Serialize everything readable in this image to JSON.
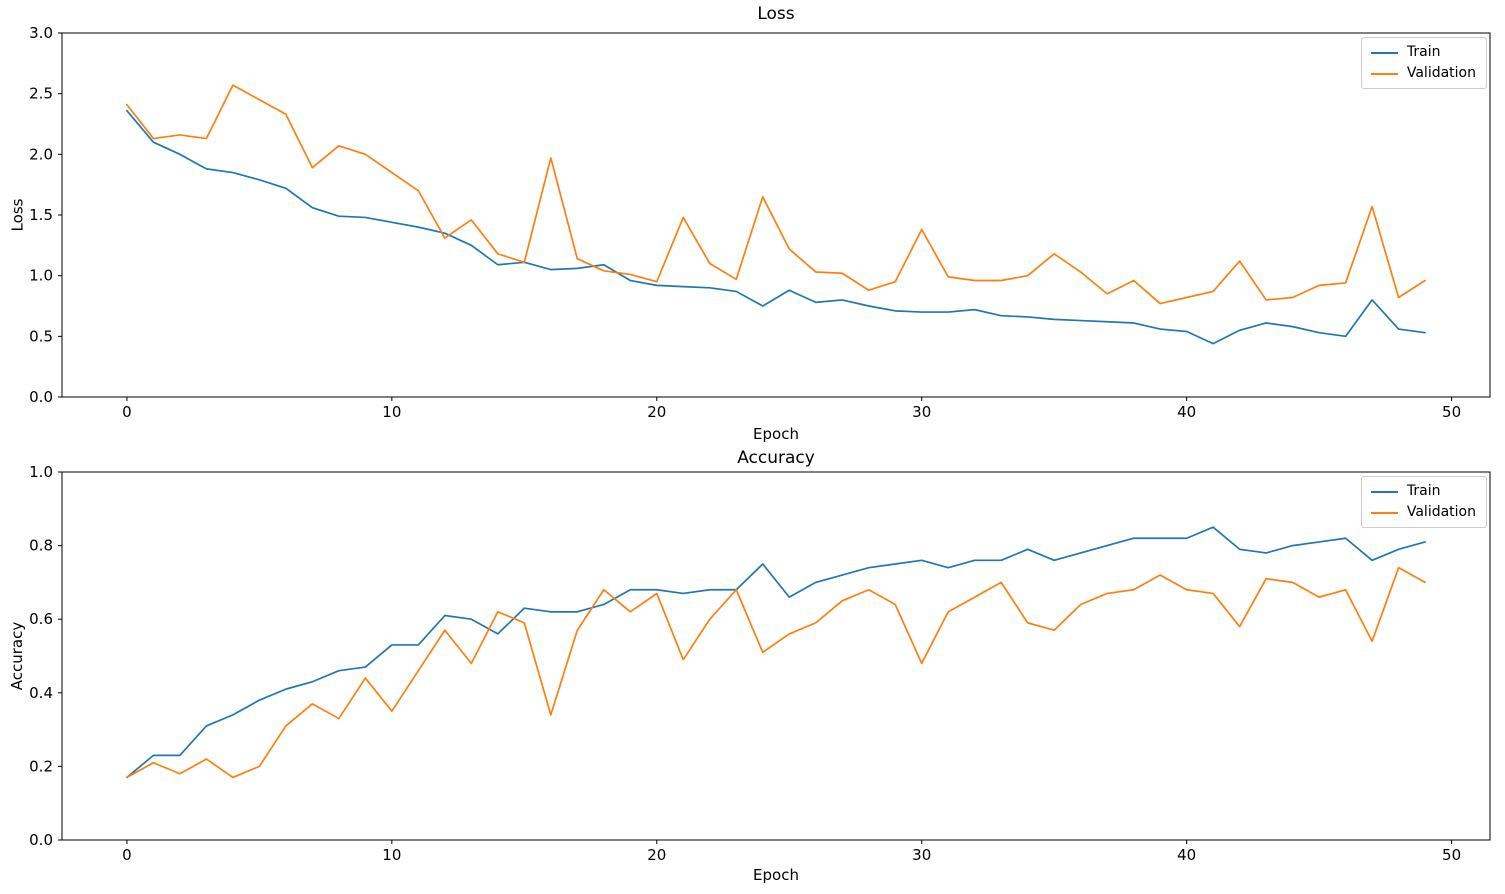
{
  "figure": {
    "background": "#ffffff"
  },
  "chart_data": [
    {
      "type": "line",
      "title": "Loss",
      "xlabel": "Epoch",
      "ylabel": "Loss",
      "xlim": [
        -2.45,
        51.45
      ],
      "ylim": [
        0.0,
        3.0
      ],
      "xticks": [
        "0",
        "10",
        "20",
        "30",
        "40",
        "50"
      ],
      "yticks": [
        "0.0",
        "0.5",
        "1.0",
        "1.5",
        "2.0",
        "2.5",
        "3.0"
      ],
      "grid": false,
      "legend_position": "upper right",
      "legend_entries": [
        "Train",
        "Validation"
      ],
      "series": [
        {
          "name": "Train",
          "color": "#1f77b4",
          "values": [
            2.36,
            2.1,
            2.0,
            1.88,
            1.85,
            1.79,
            1.72,
            1.56,
            1.49,
            1.48,
            1.44,
            1.4,
            1.35,
            1.25,
            1.09,
            1.11,
            1.05,
            1.06,
            1.09,
            0.96,
            0.92,
            0.91,
            0.9,
            0.87,
            0.75,
            0.88,
            0.78,
            0.8,
            0.75,
            0.71,
            0.7,
            0.7,
            0.72,
            0.67,
            0.66,
            0.64,
            0.63,
            0.62,
            0.61,
            0.56,
            0.54,
            0.44,
            0.55,
            0.61,
            0.58,
            0.53,
            0.5,
            0.8,
            0.56,
            0.53
          ]
        },
        {
          "name": "Validation",
          "color": "#ff7f0e",
          "values": [
            2.41,
            2.13,
            2.16,
            2.13,
            2.57,
            2.45,
            2.33,
            1.89,
            2.07,
            2.0,
            1.85,
            1.7,
            1.31,
            1.46,
            1.18,
            1.11,
            1.97,
            1.14,
            1.04,
            1.01,
            0.95,
            1.48,
            1.1,
            0.97,
            1.65,
            1.22,
            1.03,
            1.02,
            0.88,
            0.95,
            1.38,
            0.99,
            0.96,
            0.96,
            1.0,
            1.18,
            1.03,
            0.85,
            0.96,
            0.77,
            0.82,
            0.87,
            1.12,
            0.8,
            0.82,
            0.92,
            0.94,
            1.57,
            0.82,
            0.96
          ]
        }
      ]
    },
    {
      "type": "line",
      "title": "Accuracy",
      "xlabel": "Epoch",
      "ylabel": "Accuracy",
      "xlim": [
        -2.45,
        51.45
      ],
      "ylim": [
        0.0,
        1.0
      ],
      "xticks": [
        "0",
        "10",
        "20",
        "30",
        "40",
        "50"
      ],
      "yticks": [
        "0.0",
        "0.2",
        "0.4",
        "0.6",
        "0.8",
        "1.0"
      ],
      "grid": false,
      "legend_position": "upper right",
      "legend_entries": [
        "Train",
        "Validation"
      ],
      "series": [
        {
          "name": "Train",
          "color": "#1f77b4",
          "values": [
            0.17,
            0.23,
            0.23,
            0.31,
            0.34,
            0.38,
            0.41,
            0.43,
            0.46,
            0.47,
            0.53,
            0.53,
            0.61,
            0.6,
            0.56,
            0.63,
            0.62,
            0.62,
            0.64,
            0.68,
            0.68,
            0.67,
            0.68,
            0.68,
            0.75,
            0.66,
            0.7,
            0.72,
            0.74,
            0.75,
            0.76,
            0.74,
            0.76,
            0.76,
            0.79,
            0.76,
            0.78,
            0.8,
            0.82,
            0.82,
            0.82,
            0.85,
            0.79,
            0.78,
            0.8,
            0.81,
            0.82,
            0.76,
            0.79,
            0.81
          ]
        },
        {
          "name": "Validation",
          "color": "#ff7f0e",
          "values": [
            0.17,
            0.21,
            0.18,
            0.22,
            0.17,
            0.2,
            0.31,
            0.37,
            0.33,
            0.44,
            0.35,
            0.46,
            0.57,
            0.48,
            0.62,
            0.59,
            0.34,
            0.57,
            0.68,
            0.62,
            0.67,
            0.49,
            0.6,
            0.68,
            0.51,
            0.56,
            0.59,
            0.65,
            0.68,
            0.64,
            0.48,
            0.62,
            0.66,
            0.7,
            0.59,
            0.57,
            0.64,
            0.67,
            0.68,
            0.72,
            0.68,
            0.67,
            0.58,
            0.71,
            0.7,
            0.66,
            0.68,
            0.54,
            0.74,
            0.7
          ]
        }
      ]
    }
  ]
}
